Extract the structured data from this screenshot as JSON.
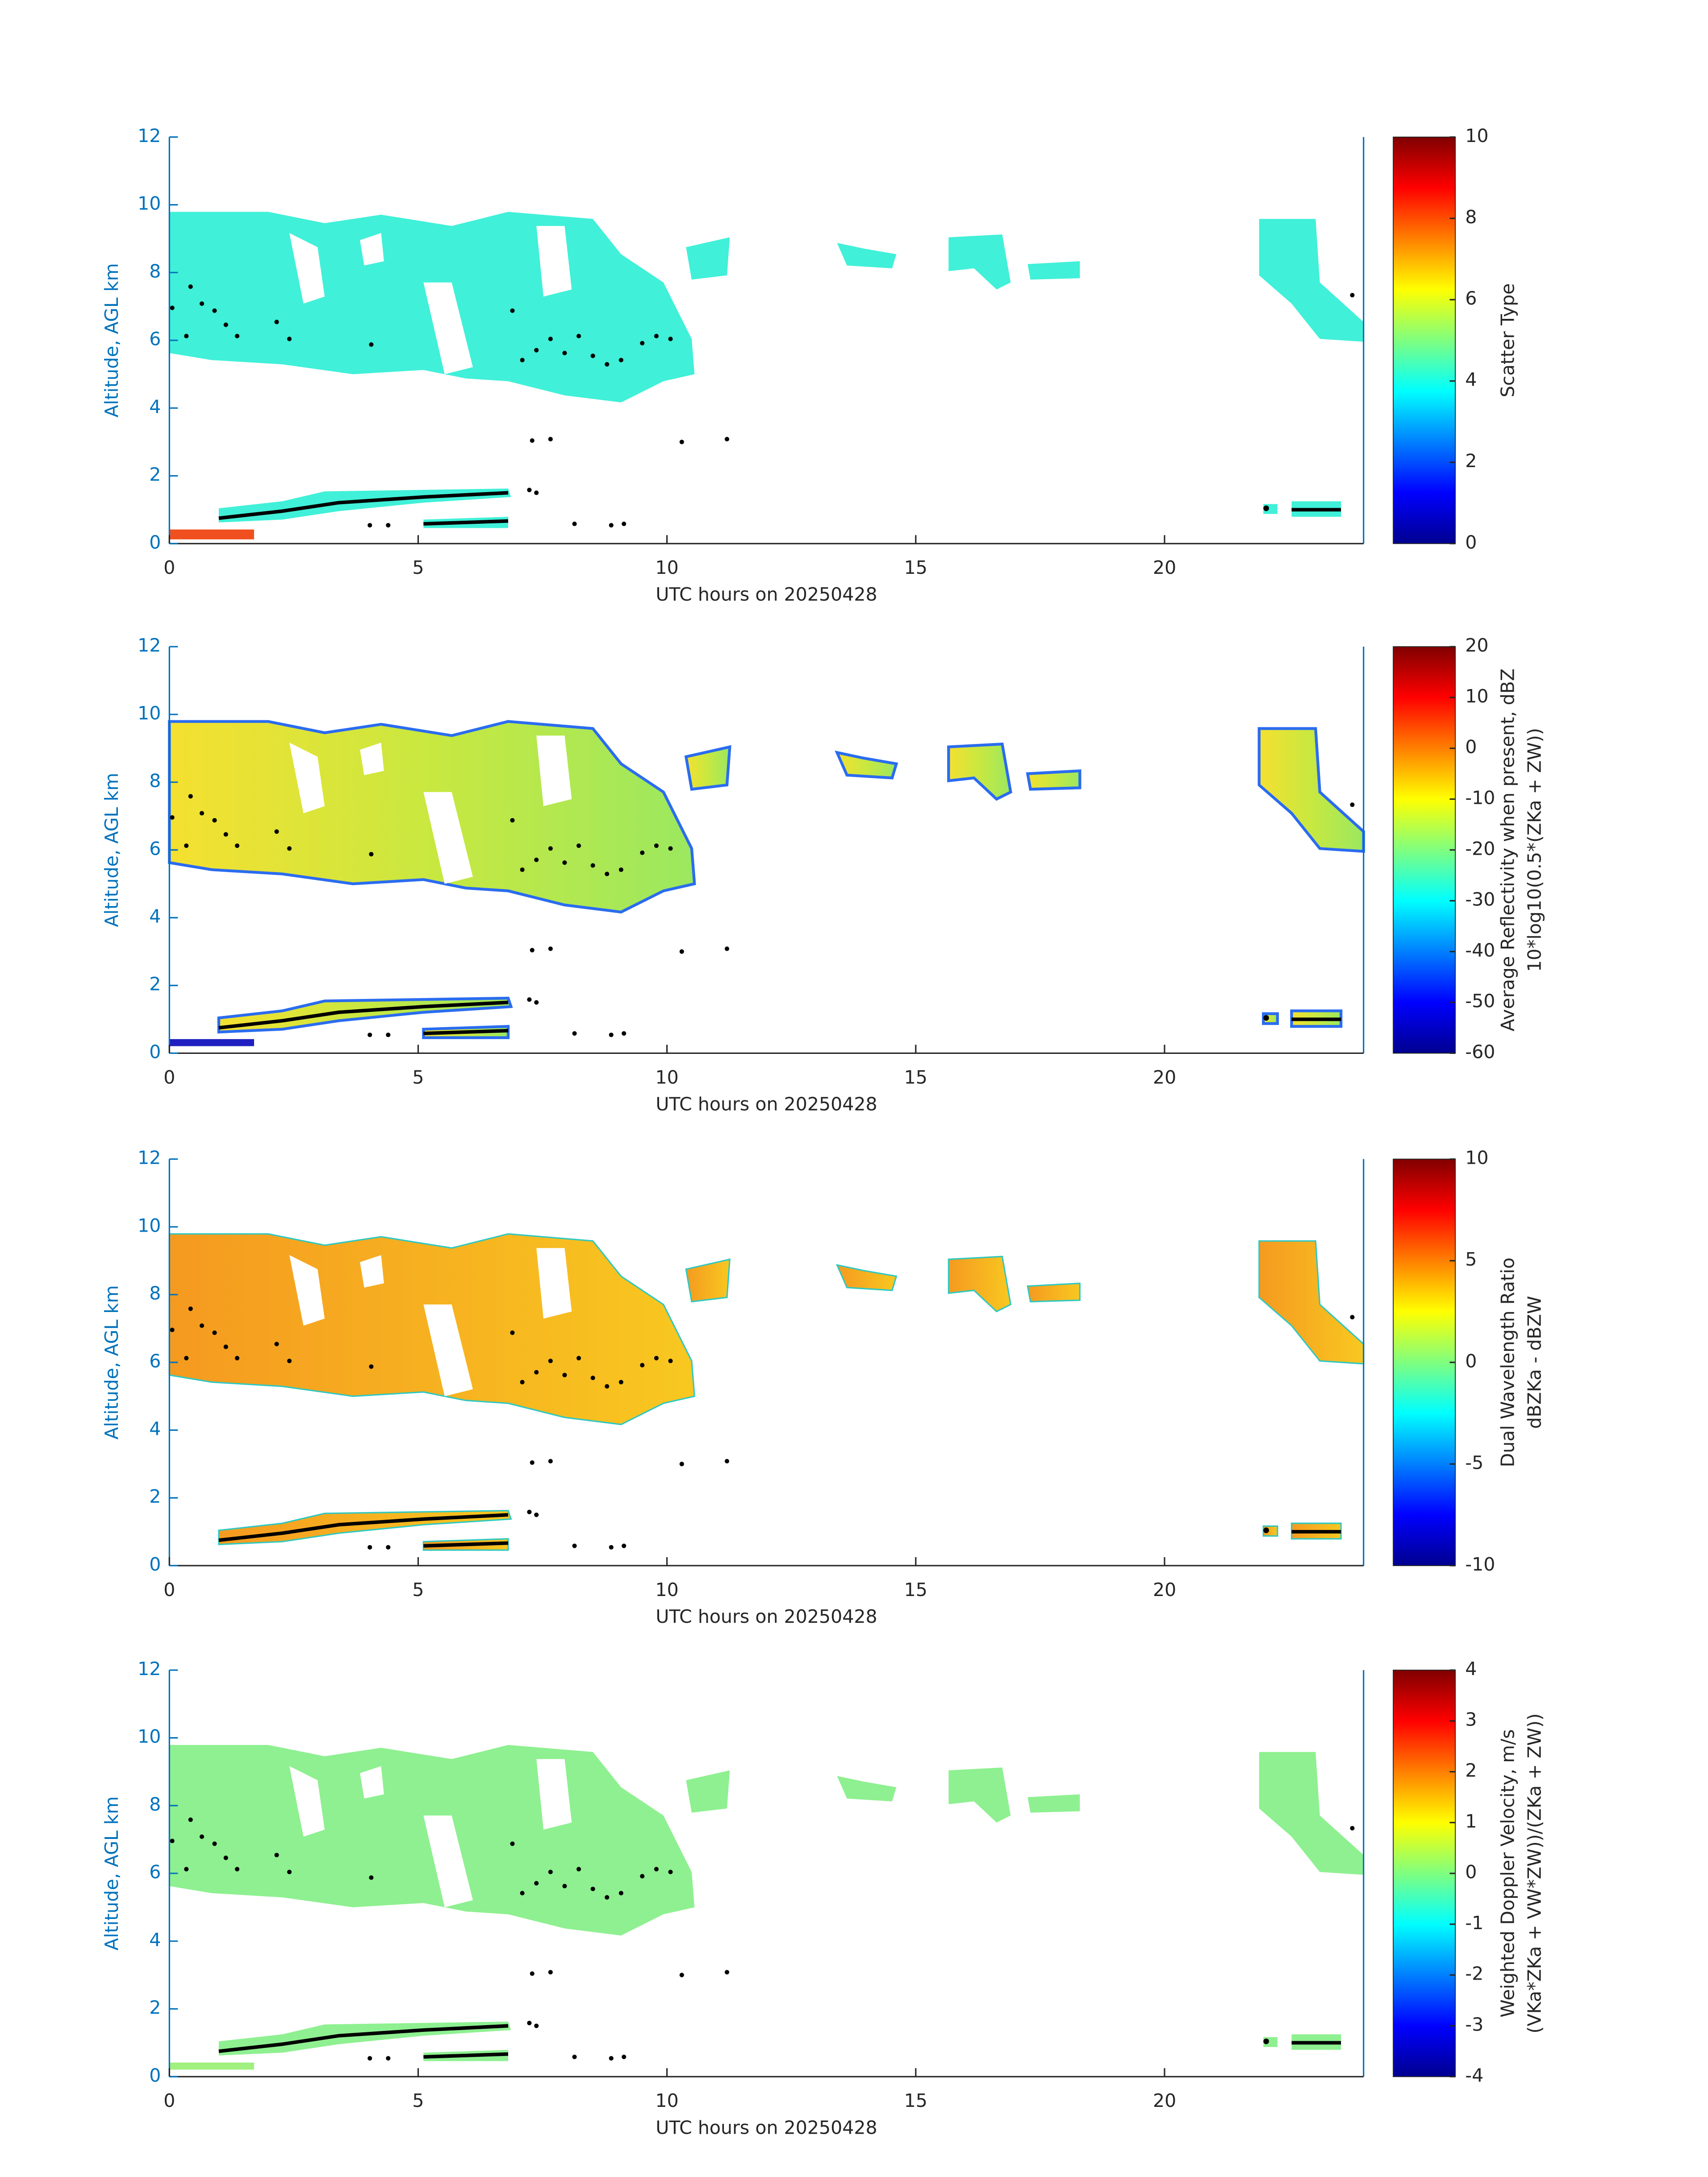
{
  "chart_data": [
    {
      "type": "heatmap",
      "xlabel": "UTC hours on 20250428",
      "ylabel": "Altitude, AGL km",
      "xlim": [
        0,
        24
      ],
      "xticks": [
        0,
        5,
        10,
        15,
        20
      ],
      "ylim": [
        0,
        12
      ],
      "yticks": [
        0,
        2,
        4,
        6,
        8,
        10,
        12
      ],
      "clim": [
        0,
        10
      ],
      "cticks": [
        0,
        2,
        4,
        6,
        8,
        10
      ],
      "colorbar_label": [
        "Scatter Type"
      ]
    },
    {
      "type": "heatmap",
      "xlabel": "UTC hours on 20250428",
      "ylabel": "Altitude, AGL km",
      "xlim": [
        0,
        24
      ],
      "xticks": [
        0,
        5,
        10,
        15,
        20
      ],
      "ylim": [
        0,
        12
      ],
      "yticks": [
        0,
        2,
        4,
        6,
        8,
        10,
        12
      ],
      "clim": [
        -60,
        20
      ],
      "cticks": [
        -60,
        -50,
        -40,
        -30,
        -20,
        -10,
        0,
        10,
        20
      ],
      "colorbar_label": [
        "Average Reflectivity when present, dBZ",
        "10*log10(0.5*(ZKa + ZW))"
      ]
    },
    {
      "type": "heatmap",
      "xlabel": "UTC hours on 20250428",
      "ylabel": "Altitude, AGL km",
      "xlim": [
        0,
        24
      ],
      "xticks": [
        0,
        5,
        10,
        15,
        20
      ],
      "ylim": [
        0,
        12
      ],
      "yticks": [
        0,
        2,
        4,
        6,
        8,
        10,
        12
      ],
      "clim": [
        -10,
        10
      ],
      "cticks": [
        -10,
        -5,
        0,
        5,
        10
      ],
      "colorbar_label": [
        "Dual Wavelength Ratio",
        "dBZKa - dBZW"
      ]
    },
    {
      "type": "heatmap",
      "xlabel": "UTC hours on 20250428",
      "ylabel": "Altitude, AGL km",
      "xlim": [
        0,
        24
      ],
      "xticks": [
        0,
        5,
        10,
        15,
        20
      ],
      "ylim": [
        0,
        12
      ],
      "yticks": [
        0,
        2,
        4,
        6,
        8,
        10,
        12
      ],
      "clim": [
        -4,
        4
      ],
      "cticks": [
        -4,
        -3,
        -2,
        -1,
        0,
        1,
        2,
        3,
        4
      ],
      "colorbar_label": [
        "Weighted Doppler Velocity, m/s",
        "(VKa*ZKa + VW*ZW))/(ZKa + ZW))"
      ]
    }
  ]
}
